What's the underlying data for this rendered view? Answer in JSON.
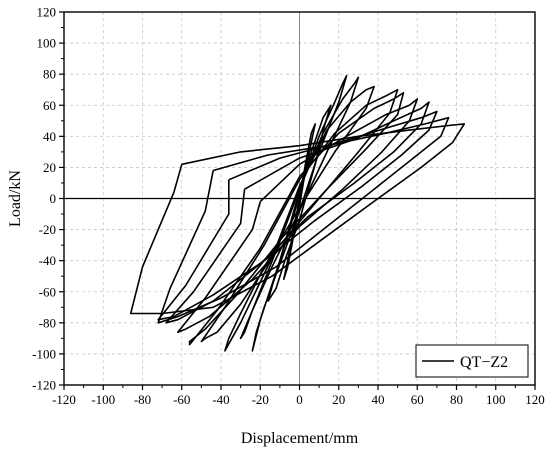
{
  "chart_data": {
    "type": "line",
    "title": "",
    "xlabel": "Displacement/mm",
    "ylabel": "Load/kN",
    "xlim": [
      -120,
      120
    ],
    "ylim": [
      -120,
      120
    ],
    "xticks": [
      -120,
      -100,
      -80,
      -60,
      -40,
      -20,
      0,
      20,
      40,
      60,
      80,
      100,
      120
    ],
    "yticks": [
      -120,
      -100,
      -80,
      -60,
      -40,
      -20,
      0,
      20,
      40,
      60,
      80,
      100,
      120
    ],
    "grid": true,
    "legend": {
      "position": "bottom-right",
      "entries": [
        "QT−Z2"
      ]
    },
    "line_color": "#000000",
    "series": [
      {
        "name": "QT−Z2",
        "cycles": [
          {
            "x": [
              0,
              3,
              6,
              8,
              6,
              3,
              0,
              -3,
              -6,
              -8,
              -6,
              -3,
              0
            ],
            "y": [
              0,
              22,
              42,
              48,
              36,
              18,
              -5,
              -24,
              -44,
              -52,
              -40,
              -20,
              0
            ]
          },
          {
            "x": [
              0,
              6,
              12,
              16,
              13,
              8,
              0,
              -7,
              -12,
              -16,
              -13,
              -6,
              0
            ],
            "y": [
              2,
              30,
              52,
              60,
              48,
              22,
              -14,
              -38,
              -58,
              -66,
              -52,
              -24,
              2
            ]
          },
          {
            "x": [
              0,
              10,
              18,
              22,
              24,
              20,
              10,
              0,
              -10,
              -18,
              -22,
              -24,
              -20,
              -10,
              0
            ],
            "y": [
              5,
              40,
              62,
              74,
              79,
              62,
              30,
              -8,
              -42,
              -70,
              -86,
              -98,
              -78,
              -40,
              5
            ]
          },
          {
            "x": [
              0,
              12,
              22,
              28,
              30,
              26,
              14,
              0,
              -14,
              -24,
              -28,
              -30,
              -24,
              -12,
              0
            ],
            "y": [
              6,
              42,
              64,
              74,
              78,
              62,
              30,
              -8,
              -44,
              -72,
              -86,
              -90,
              -72,
              -34,
              6
            ]
          },
          {
            "x": [
              0,
              14,
              26,
              34,
              38,
              34,
              18,
              0,
              -18,
              -30,
              -36,
              -38,
              -30,
              -14,
              0
            ],
            "y": [
              8,
              44,
              62,
              70,
              72,
              58,
              30,
              -6,
              -44,
              -74,
              -90,
              -98,
              -80,
              -38,
              8
            ]
          },
          {
            "x": [
              0,
              18,
              34,
              44,
              50,
              46,
              30,
              10,
              -10,
              -30,
              -42,
              -48,
              -50,
              -38,
              -18,
              0
            ],
            "y": [
              12,
              42,
              60,
              66,
              70,
              55,
              30,
              0,
              -30,
              -68,
              -86,
              -90,
              -92,
              -70,
              -30,
              12
            ]
          },
          {
            "x": [
              0,
              20,
              38,
              48,
              53,
              50,
              34,
              14,
              -8,
              -32,
              -48,
              -56,
              -56,
              -42,
              -20,
              0
            ],
            "y": [
              14,
              42,
              58,
              64,
              68,
              54,
              32,
              6,
              -24,
              -62,
              -84,
              -92,
              -94,
              -72,
              -32,
              14
            ]
          },
          {
            "x": [
              -20,
              0,
              24,
              44,
              56,
              60,
              56,
              42,
              22,
              0,
              -24,
              -46,
              -58,
              -62,
              -48,
              -24,
              -20
            ],
            "y": [
              -2,
              22,
              40,
              54,
              60,
              64,
              50,
              30,
              6,
              -18,
              -52,
              -76,
              -84,
              -86,
              -64,
              -20,
              -2
            ]
          },
          {
            "x": [
              -28,
              0,
              28,
              48,
              62,
              66,
              62,
              48,
              28,
              4,
              -20,
              -44,
              -62,
              -68,
              -54,
              -30,
              -28
            ],
            "y": [
              6,
              26,
              38,
              50,
              58,
              62,
              48,
              30,
              10,
              -12,
              -42,
              -66,
              -78,
              -80,
              -60,
              -16,
              6
            ]
          },
          {
            "x": [
              -36,
              -10,
              20,
              46,
              62,
              70,
              66,
              52,
              32,
              8,
              -18,
              -44,
              -64,
              -72,
              -58,
              -36,
              -36
            ],
            "y": [
              12,
              26,
              36,
              46,
              52,
              56,
              44,
              28,
              8,
              -14,
              -40,
              -62,
              -76,
              -78,
              -56,
              -10,
              12
            ]
          },
          {
            "x": [
              -44,
              -16,
              14,
              44,
              64,
              76,
              72,
              58,
              38,
              14,
              -12,
              -40,
              -62,
              -72,
              -66,
              -48,
              -44
            ],
            "y": [
              18,
              28,
              34,
              42,
              48,
              52,
              40,
              26,
              6,
              -18,
              -44,
              -64,
              -76,
              -80,
              -58,
              -8,
              18
            ]
          },
          {
            "x": [
              -60,
              -30,
              0,
              30,
              56,
              76,
              84,
              78,
              62,
              40,
              14,
              -14,
              -44,
              -70,
              -86,
              -80,
              -64,
              -60
            ],
            "y": [
              22,
              30,
              34,
              40,
              44,
              47,
              48,
              36,
              20,
              0,
              -24,
              -50,
              -70,
              -74,
              -74,
              -44,
              4,
              22
            ]
          }
        ]
      }
    ]
  }
}
